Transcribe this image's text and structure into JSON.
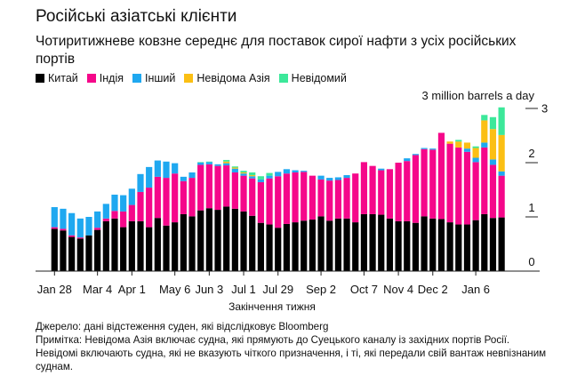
{
  "title": "Російські азіатські клієнти",
  "subtitle": "Чотиритижневе ковзне середнє для поставок сирої нафти з усіх російських портів",
  "footer": {
    "source": "Джерело: дані відстеження суден, які відслідковує Bloomberg",
    "note1": "Примітка: Невідома Азія включає судна, які прямують до Суецького каналу із західних портів Росії.",
    "note2": "Невідомі включають судна, які не вказують чіткого призначення, і ті, які передали свій вантаж невпізнаним суднам."
  },
  "chart_data": {
    "type": "bar",
    "stacked": true,
    "title": "Російські азіатські клієнти",
    "xlabel": "Закінчення тижня",
    "ylabel": "3 million barrels a day",
    "ylim": [
      0,
      3
    ],
    "yticks": [
      "0",
      "1",
      "2",
      "3"
    ],
    "xticks": [
      {
        "label": "Jan 28",
        "index": 0
      },
      {
        "label": "Mar 4",
        "index": 5
      },
      {
        "label": "Apr 1",
        "index": 9
      },
      {
        "label": "May 6",
        "index": 14
      },
      {
        "label": "Jun 3",
        "index": 18
      },
      {
        "label": "Jul 1",
        "index": 22
      },
      {
        "label": "Jul 29",
        "index": 26
      },
      {
        "label": "Sep 2",
        "index": 31
      },
      {
        "label": "Oct 7",
        "index": 36
      },
      {
        "label": "Nov 4",
        "index": 40
      },
      {
        "label": "Dec 2",
        "index": 44
      },
      {
        "label": "Jan 6",
        "index": 49
      }
    ],
    "legend_position": "top-left",
    "series": [
      {
        "name": "Китай",
        "color": "#000000",
        "values": [
          0.78,
          0.75,
          0.63,
          0.6,
          0.66,
          0.76,
          0.92,
          0.97,
          0.81,
          0.92,
          0.92,
          0.81,
          0.98,
          0.84,
          0.9,
          1.05,
          1.01,
          1.12,
          1.16,
          1.13,
          1.19,
          1.15,
          1.1,
          1.02,
          0.89,
          0.86,
          0.8,
          0.87,
          0.9,
          0.93,
          0.95,
          1.01,
          0.93,
          0.97,
          0.97,
          0.9,
          1.05,
          1.05,
          1.04,
          0.97,
          0.92,
          0.92,
          0.89,
          1.01,
          0.97,
          0.96,
          0.9,
          0.86,
          0.86,
          0.94,
          1.05,
          0.98,
          0.99
        ]
      },
      {
        "name": "Індія",
        "color": "#f5078a",
        "values": [
          0.03,
          0.03,
          0.03,
          0.02,
          0.0,
          0.04,
          0.05,
          0.14,
          0.29,
          0.3,
          0.54,
          0.73,
          0.76,
          0.88,
          0.9,
          0.61,
          0.71,
          0.84,
          0.81,
          0.81,
          0.76,
          0.67,
          0.66,
          0.69,
          0.75,
          0.85,
          0.95,
          0.93,
          0.92,
          0.9,
          0.81,
          0.68,
          0.74,
          0.71,
          0.75,
          0.9,
          0.96,
          0.89,
          0.82,
          0.91,
          1.08,
          1.11,
          1.25,
          1.24,
          1.27,
          1.59,
          1.45,
          1.42,
          1.34,
          1.07,
          1.23,
          0.98,
          0.77
        ]
      },
      {
        "name": "Інший",
        "color": "#1fa8f0",
        "values": [
          0.37,
          0.37,
          0.41,
          0.35,
          0.34,
          0.3,
          0.27,
          0.3,
          0.3,
          0.3,
          0.33,
          0.38,
          0.3,
          0.3,
          0.19,
          0.08,
          0.1,
          0.04,
          0.04,
          0.03,
          0.04,
          0.07,
          0.04,
          0.04,
          0.05,
          0.05,
          0.08,
          0.08,
          0.04,
          0.02,
          0.0,
          0.07,
          0.05,
          0.05,
          0.05,
          0.0,
          0.0,
          0.0,
          0.03,
          0.0,
          0.0,
          0.05,
          0.02,
          0.02,
          0.02,
          0.0,
          0.0,
          0.0,
          0.06,
          0.08,
          0.09,
          0.1,
          0.08
        ]
      },
      {
        "name": "Невідома Азія",
        "color": "#fbbf14",
        "values": [
          0,
          0,
          0,
          0,
          0,
          0,
          0,
          0,
          0,
          0,
          0,
          0,
          0,
          0,
          0,
          0,
          0,
          0,
          0,
          0,
          0.03,
          0.02,
          0.02,
          0.02,
          0,
          0,
          0,
          0,
          0,
          0,
          0,
          0,
          0,
          0,
          0,
          0,
          0,
          0,
          0,
          0,
          0,
          0,
          0,
          0,
          0,
          0,
          0.04,
          0.11,
          0.11,
          0.18,
          0.41,
          0.56,
          0.67
        ]
      },
      {
        "name": "Невідомий",
        "color": "#3ce89a",
        "values": [
          0,
          0,
          0,
          0,
          0,
          0,
          0,
          0,
          0,
          0,
          0,
          0,
          0,
          0,
          0,
          0,
          0,
          0.01,
          0.01,
          0,
          0.03,
          0.02,
          0.03,
          0.05,
          0.06,
          0.05,
          0,
          0,
          0,
          0,
          0,
          0,
          0,
          0,
          0,
          0,
          0,
          0,
          0,
          0,
          0,
          0,
          0,
          0,
          0,
          0,
          0,
          0.03,
          0,
          0.03,
          0.1,
          0.22,
          0.51
        ]
      }
    ]
  }
}
